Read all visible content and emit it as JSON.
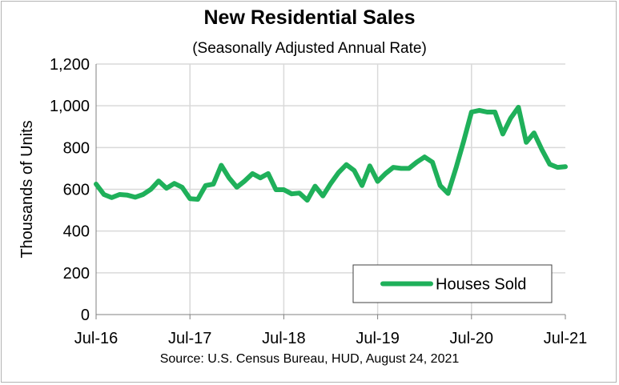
{
  "chart_data": {
    "type": "line",
    "title": "New Residential Sales",
    "subtitle": "(Seasonally Adjusted Annual Rate)",
    "ylabel": "Thousands of Units",
    "xlabel": "",
    "source": "Source:  U.S. Census Bureau, HUD, August 24, 2021",
    "ylim": [
      0,
      1200
    ],
    "y_ticks": [
      0,
      200,
      400,
      600,
      800,
      1000,
      1200
    ],
    "y_tick_labels": [
      "0",
      "200",
      "400",
      "600",
      "800",
      "1,000",
      "1,200"
    ],
    "x_tick_labels": [
      "Jul-16",
      "Jul-17",
      "Jul-18",
      "Jul-19",
      "Jul-20",
      "Jul-21"
    ],
    "x_tick_index": [
      0,
      12,
      24,
      36,
      48,
      60
    ],
    "grid": true,
    "legend_position": "bottom-right",
    "series": [
      {
        "name": "Houses Sold",
        "color": "#1fb05a",
        "values": [
          625,
          575,
          560,
          575,
          572,
          562,
          575,
          600,
          640,
          605,
          628,
          610,
          555,
          552,
          618,
          625,
          715,
          655,
          610,
          640,
          675,
          655,
          675,
          598,
          598,
          578,
          582,
          548,
          615,
          568,
          628,
          680,
          718,
          690,
          618,
          712,
          638,
          675,
          705,
          700,
          700,
          730,
          755,
          730,
          618,
          580,
          700,
          830,
          970,
          978,
          970,
          970,
          865,
          940,
          993,
          825,
          870,
          790,
          720,
          705,
          708
        ]
      }
    ]
  }
}
